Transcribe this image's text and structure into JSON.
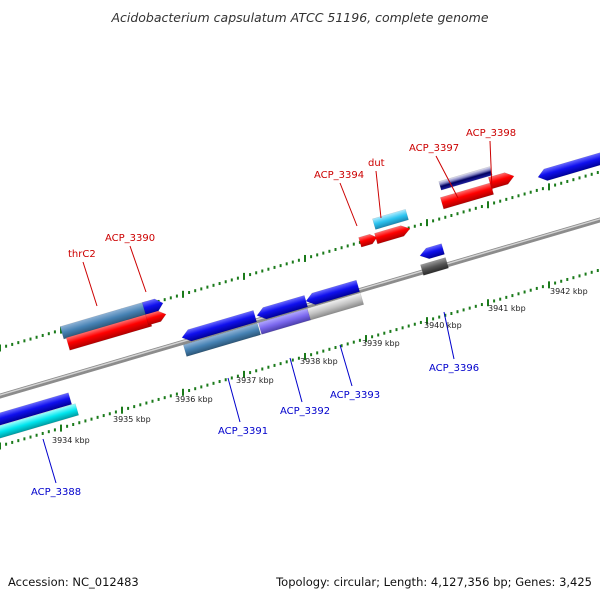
{
  "header": {
    "title": "Acidobacterium capsulatum ATCC 51196, complete genome"
  },
  "footer": {
    "accession": "Accession: NC_012483",
    "summary": "Topology: circular; Length: 4,127,356 bp; Genes: 3,425"
  },
  "scale_labels": [
    "3934 kbp",
    "3935 kbp",
    "3936 kbp",
    "3937 kbp",
    "3938 kbp",
    "3939 kbp",
    "3940 kbp",
    "3941 kbp",
    "3942 kbp"
  ],
  "gene_labels_forward": [
    "thrC2",
    "ACP_3390",
    "ACP_3394",
    "dut",
    "ACP_3397",
    "ACP_3398"
  ],
  "gene_labels_reverse": [
    "ACP_3388",
    "ACP_3391",
    "ACP_3392",
    "ACP_3393",
    "ACP_3396"
  ],
  "colors": {
    "forward_label": "#cc0000",
    "reverse_label": "#0000cc",
    "forward_gene": "#ff0000",
    "reverse_gene": "#0000ee",
    "steelblue_gene": "#4682b4",
    "cyan_gene": "#00e5ee",
    "purple_gene": "#7b68ee",
    "gray_gene": "#bbbbbb",
    "tick": "#1a7a1a",
    "backbone": "#8c8c8c"
  }
}
